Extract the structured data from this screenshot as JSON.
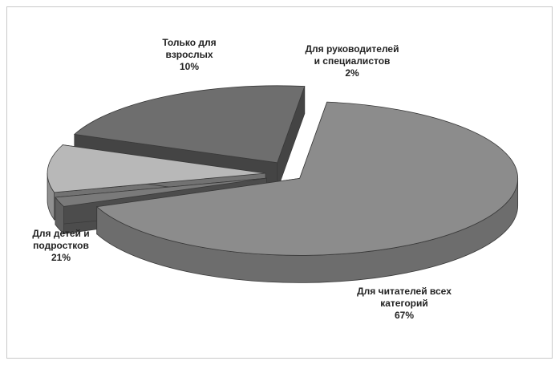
{
  "chart_data": {
    "type": "pie",
    "title": "",
    "style": "3d-exploded",
    "slices": [
      {
        "label_lines": [
          "Для читателей всех",
          "категорий"
        ],
        "percent_text": "67%",
        "value": 67,
        "color": "#8c8c8c"
      },
      {
        "label_lines": [
          "Для руководителей",
          "и специалистов"
        ],
        "percent_text": "2%",
        "value": 2,
        "color": "#7a7a7a"
      },
      {
        "label_lines": [
          "Только для",
          "взрослых"
        ],
        "percent_text": "10%",
        "value": 10,
        "color": "#b8b8b8"
      },
      {
        "label_lines": [
          "Для детей и",
          "подростков"
        ],
        "percent_text": "21%",
        "value": 21,
        "color": "#6e6e6e"
      }
    ],
    "legend": "none"
  }
}
